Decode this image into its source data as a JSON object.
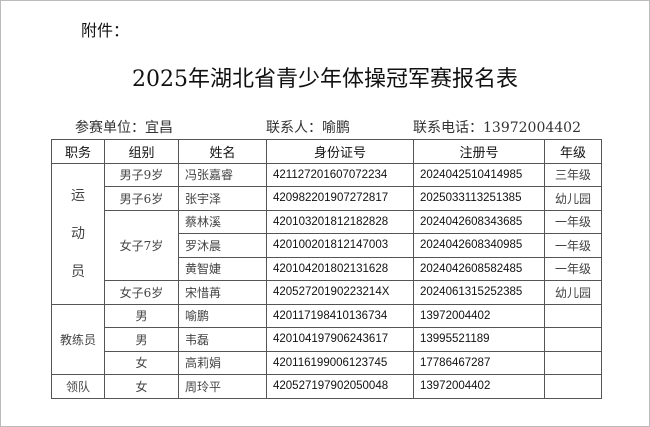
{
  "attachment": "附件：",
  "title": "2025年湖北省青少年体操冠军赛报名表",
  "info": {
    "unit": "参赛单位：宜昌",
    "contact": "联系人：喻鹏",
    "phone": "联系电话：13972004402"
  },
  "headers": [
    "职务",
    "组别",
    "姓名",
    "身份证号",
    "注册号",
    "年级"
  ],
  "athletes_role": [
    "运",
    "动",
    "员"
  ],
  "athletes": [
    {
      "group": "男子9岁",
      "name": "冯张嘉睿",
      "id": "421127201607072234",
      "reg": "2024042510414985",
      "grade": "三年级"
    },
    {
      "group": "男子6岁",
      "name": "张宇泽",
      "id": "420982201907272817",
      "reg": "2025033113251385",
      "grade": "幼儿园"
    },
    {
      "group": "女子7岁",
      "name": "蔡林溪",
      "id": "420103201812182828",
      "reg": "2024042608343685",
      "grade": "一年级"
    },
    {
      "group": "",
      "name": "罗沐晨",
      "id": "420100201812147003",
      "reg": "2024042608340985",
      "grade": "一年级"
    },
    {
      "group": "",
      "name": "黄智婕",
      "id": "420104201802131628",
      "reg": "2024042608582485",
      "grade": "一年级"
    },
    {
      "group": "女子6岁",
      "name": "宋惜苒",
      "id": "42052720190223214X",
      "reg": "2024061315252385",
      "grade": "幼儿园"
    }
  ],
  "coach_role": "教练员",
  "coaches": [
    {
      "group": "男",
      "name": "喻鹏",
      "id": "420117198410136734",
      "reg": "13972004402"
    },
    {
      "group": "男",
      "name": "韦磊",
      "id": "420104197906243617",
      "reg": "13995521189"
    },
    {
      "group": "女",
      "name": "高莉娟",
      "id": "420116199006123745",
      "reg": "17786467287"
    }
  ],
  "leader_role": "领队",
  "leader": {
    "group": "女",
    "name": "周玲平",
    "id": "420527197902050048",
    "reg": "13972004402"
  }
}
